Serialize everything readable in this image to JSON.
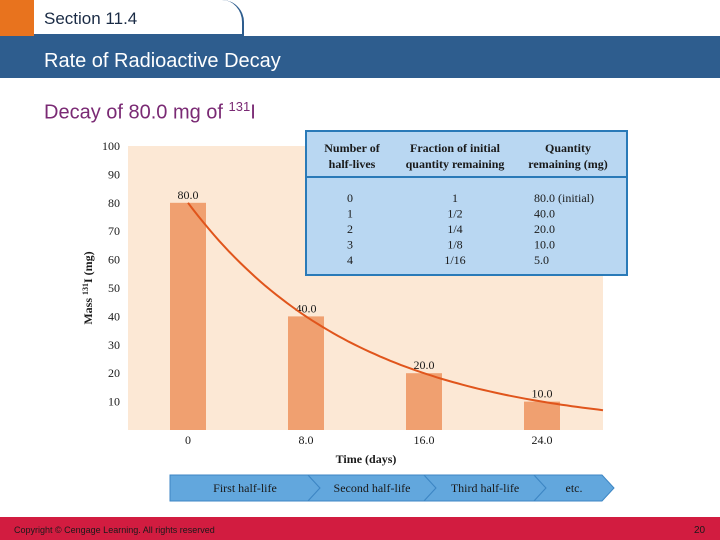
{
  "header": {
    "section_label": "Section 11.4",
    "title": "Rate of Radioactive Decay",
    "subtitle_prefix": "Decay of 80.0 mg of ",
    "subtitle_superscript": "131",
    "subtitle_suffix": "I"
  },
  "chart_data": {
    "type": "bar",
    "categories": [
      "0",
      "8.0",
      "16.0",
      "24.0"
    ],
    "x": [
      0,
      8.0,
      16.0,
      24.0
    ],
    "values": [
      80.0,
      40.0,
      20.0,
      10.0
    ],
    "data_labels": [
      "80.0",
      "40.0",
      "20.0",
      "10.0"
    ],
    "xlabel": "Time (days)",
    "ylabel_prefix": "Mass ",
    "ylabel_superscript": "131",
    "ylabel_suffix": "I (mg)",
    "ylim": [
      0,
      100
    ],
    "yticks": [
      10,
      20,
      30,
      40,
      50,
      60,
      70,
      80,
      90,
      100
    ],
    "ytick_labels": [
      "10",
      "20",
      "30",
      "40",
      "50",
      "60",
      "70",
      "80",
      "90",
      "100"
    ],
    "curve": "exponential decay through bar tops",
    "grid": false,
    "colors": {
      "bar": "#f0a070",
      "curve": "#e0551c",
      "plot_bg": "#fce8d5",
      "table_bg": "#b9d7f2",
      "table_border": "#2a7ab8",
      "arrow": "#62a7dd"
    }
  },
  "table": {
    "headers": [
      "Number of half-lives",
      "Fraction of initial quantity remaining",
      "Quantity remaining (mg)"
    ],
    "header_lines": [
      [
        "Number of",
        "half-lives"
      ],
      [
        "Fraction of initial",
        "quantity remaining"
      ],
      [
        "Quantity",
        "remaining (mg)"
      ]
    ],
    "rows": [
      [
        "0",
        "1",
        "80.0 (initial)"
      ],
      [
        "1",
        "1/2",
        "40.0"
      ],
      [
        "2",
        "1/4",
        "20.0"
      ],
      [
        "3",
        "1/8",
        "10.0"
      ],
      [
        "4",
        "1/16",
        "5.0"
      ]
    ]
  },
  "half_life_arrows": [
    "First half-life",
    "Second half-life",
    "Third half-life",
    "etc."
  ],
  "footer": {
    "copyright": "Copyright © Cengage Learning. All rights reserved",
    "page_number": "20"
  }
}
